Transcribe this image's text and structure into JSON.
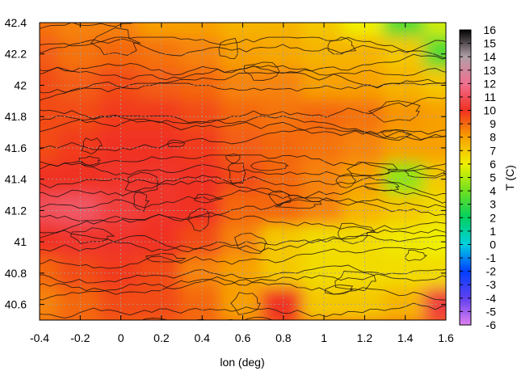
{
  "chart_data": {
    "type": "heatmap",
    "title": "",
    "xlabel": "lon (deg)",
    "ylabel": "",
    "xlim": [
      -0.4,
      1.6
    ],
    "ylim": [
      40.5,
      42.4
    ],
    "x_ticks": [
      "-0.4",
      "-0.2",
      "0",
      "0.2",
      "0.4",
      "0.6",
      "0.8",
      "1",
      "1.2",
      "1.4",
      "1.6"
    ],
    "y_ticks": [
      "40.6",
      "40.8",
      "41",
      "41.2",
      "41.4",
      "41.6",
      "41.8",
      "42",
      "42.2",
      "42.4"
    ],
    "grid": true,
    "colorbar": {
      "label": "T (C)",
      "min": -6,
      "max": 16,
      "ticks": [
        "-6",
        "-5",
        "-4",
        "-3",
        "-2",
        "-1",
        "0",
        "1",
        "2",
        "3",
        "4",
        "5",
        "6",
        "7",
        "8",
        "9",
        "10",
        "11",
        "12",
        "13",
        "14",
        "15",
        "16"
      ],
      "stops": [
        {
          "value": -6,
          "color": "#e080f0"
        },
        {
          "value": -4,
          "color": "#6040f0"
        },
        {
          "value": -2,
          "color": "#0040ff"
        },
        {
          "value": 0,
          "color": "#00d0e0"
        },
        {
          "value": 2,
          "color": "#00d060"
        },
        {
          "value": 4,
          "color": "#70e020"
        },
        {
          "value": 6,
          "color": "#f0f000"
        },
        {
          "value": 8,
          "color": "#f8a000"
        },
        {
          "value": 10,
          "color": "#f03020"
        },
        {
          "value": 12,
          "color": "#f07090"
        },
        {
          "value": 14,
          "color": "#b0a0a8"
        },
        {
          "value": 16,
          "color": "#000000"
        }
      ]
    },
    "grid_x": [
      -0.4,
      -0.2,
      0,
      0.2,
      0.4,
      0.6,
      0.8,
      1,
      1.2,
      1.4,
      1.6
    ],
    "grid_y": [
      42.4,
      42.2,
      42.0,
      41.8,
      41.6,
      41.4,
      41.2,
      41.0,
      40.8,
      40.6
    ],
    "z": [
      [
        8.8,
        8.5,
        8.5,
        8.0,
        8.0,
        7.5,
        7.5,
        7.0,
        6.0,
        3.5,
        5.5
      ],
      [
        9.2,
        8.8,
        9.0,
        8.8,
        8.5,
        8.0,
        7.8,
        7.5,
        7.5,
        7.0,
        3.5
      ],
      [
        9.5,
        9.2,
        9.5,
        9.2,
        9.0,
        8.5,
        8.5,
        8.0,
        8.0,
        7.5,
        7.0
      ],
      [
        9.5,
        9.5,
        9.8,
        9.8,
        9.5,
        9.0,
        8.8,
        9.0,
        8.8,
        8.2,
        8.0
      ],
      [
        9.5,
        9.8,
        10.0,
        10.0,
        9.8,
        9.2,
        9.0,
        8.8,
        8.5,
        8.0,
        8.0
      ],
      [
        10.0,
        10.0,
        10.2,
        10.2,
        10.0,
        9.5,
        9.0,
        8.5,
        8.0,
        4.5,
        7.0
      ],
      [
        11.0,
        11.2,
        10.5,
        10.2,
        10.0,
        9.0,
        9.0,
        8.5,
        7.5,
        7.0,
        6.5
      ],
      [
        10.0,
        10.2,
        10.2,
        10.0,
        9.5,
        8.5,
        7.0,
        6.5,
        6.5,
        6.2,
        6.0
      ],
      [
        9.0,
        9.5,
        9.8,
        9.5,
        8.5,
        8.0,
        7.0,
        6.5,
        6.5,
        6.5,
        6.5
      ],
      [
        8.5,
        9.0,
        9.5,
        9.5,
        9.0,
        8.0,
        10.0,
        7.0,
        7.0,
        7.5,
        10.5
      ]
    ]
  }
}
